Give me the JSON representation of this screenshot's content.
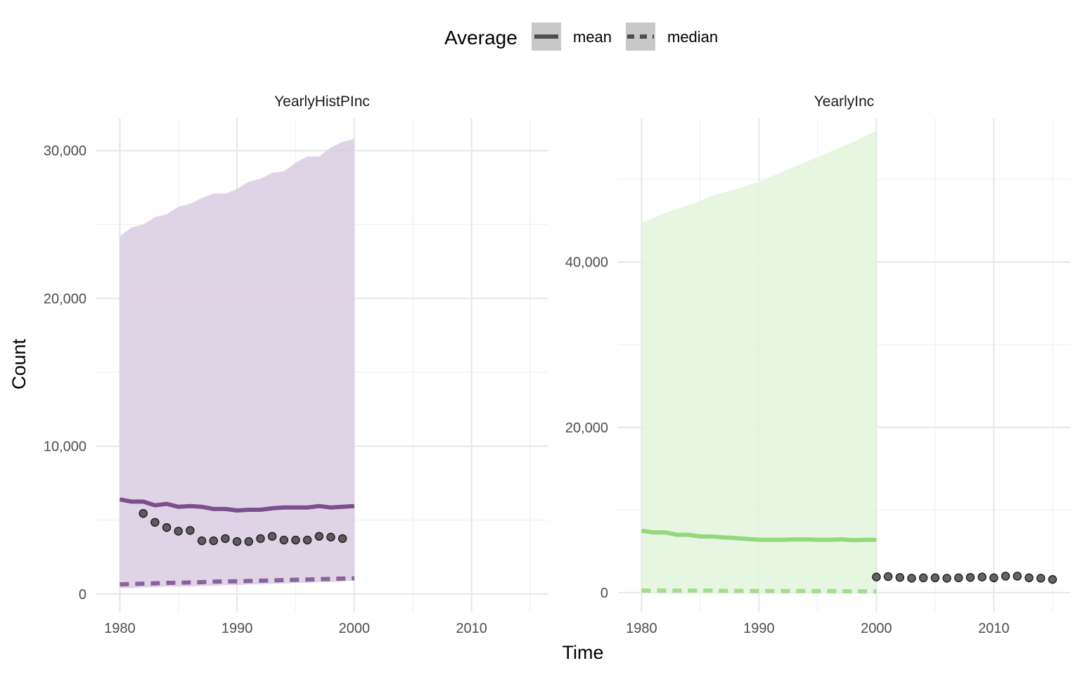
{
  "legend": {
    "title": "Average",
    "items": [
      {
        "label": "mean",
        "dash": "solid"
      },
      {
        "label": "median",
        "dash": "dashed"
      }
    ]
  },
  "axes": {
    "xlabel": "Time",
    "ylabel": "Count"
  },
  "chart_data": [
    {
      "type": "line",
      "title": "YearlyHistPInc",
      "color": "#7b4f8e",
      "band_color": "#d9cde0",
      "xlim": [
        1978,
        2016.5
      ],
      "ylim": [
        -1200,
        32200
      ],
      "x_ticks": [
        1980,
        1990,
        2000,
        2010
      ],
      "x_tick_labels": [
        "1980",
        "1990",
        "2000",
        "2010"
      ],
      "y_ticks": [
        0,
        10000,
        20000,
        30000
      ],
      "y_tick_labels": [
        "0",
        "10,000",
        "20,000",
        "30,000"
      ],
      "band": {
        "x": [
          1980,
          1981,
          1982,
          1983,
          1984,
          1985,
          1986,
          1987,
          1988,
          1989,
          1990,
          1991,
          1992,
          1993,
          1994,
          1995,
          1996,
          1997,
          1998,
          1999,
          2000
        ],
        "upper": [
          24200,
          24800,
          25000,
          25500,
          25700,
          26200,
          26400,
          26800,
          27100,
          27100,
          27400,
          27900,
          28100,
          28500,
          28600,
          29200,
          29600,
          29600,
          30200,
          30600,
          30800
        ],
        "lower": [
          400,
          400,
          450,
          450,
          500,
          500,
          500,
          550,
          550,
          600,
          600,
          650,
          650,
          700,
          700,
          750,
          750,
          800,
          800,
          850,
          900
        ]
      },
      "series": [
        {
          "name": "mean",
          "x": [
            1980,
            1981,
            1982,
            1983,
            1984,
            1985,
            1986,
            1987,
            1988,
            1989,
            1990,
            1991,
            1992,
            1993,
            1994,
            1995,
            1996,
            1997,
            1998,
            1999,
            2000
          ],
          "values": [
            6400,
            6250,
            6250,
            6000,
            6100,
            5900,
            5950,
            5900,
            5750,
            5750,
            5650,
            5700,
            5700,
            5800,
            5850,
            5850,
            5850,
            5950,
            5850,
            5900,
            5950
          ]
        },
        {
          "name": "median",
          "x": [
            1980,
            1981,
            1982,
            1983,
            1984,
            1985,
            1986,
            1987,
            1988,
            1989,
            1990,
            1991,
            1992,
            1993,
            1994,
            1995,
            1996,
            1997,
            1998,
            1999,
            2000
          ],
          "values": [
            650,
            680,
            700,
            720,
            750,
            760,
            780,
            800,
            830,
            850,
            860,
            880,
            900,
            920,
            940,
            960,
            980,
            1000,
            1020,
            1040,
            1060
          ]
        }
      ],
      "points": {
        "x": [
          1982,
          1983,
          1984,
          1985,
          1986,
          1987,
          1988,
          1989,
          1990,
          1991,
          1992,
          1993,
          1994,
          1995,
          1996,
          1997,
          1998,
          1999
        ],
        "y": [
          5450,
          4850,
          4500,
          4250,
          4300,
          3600,
          3600,
          3750,
          3550,
          3550,
          3750,
          3900,
          3650,
          3650,
          3650,
          3900,
          3850,
          3750
        ]
      }
    },
    {
      "type": "line",
      "title": "YearlyInc",
      "color": "#93d97c",
      "band_color": "#e2f5dc",
      "xlim": [
        1978,
        2016.5
      ],
      "ylim": [
        -2300,
        57400
      ],
      "x_ticks": [
        1980,
        1990,
        2000,
        2010
      ],
      "x_tick_labels": [
        "1980",
        "1990",
        "2000",
        "2010"
      ],
      "y_ticks": [
        0,
        20000,
        40000
      ],
      "y_tick_labels": [
        "0",
        "20,000",
        "40,000"
      ],
      "band": {
        "x": [
          1980,
          1981,
          1982,
          1983,
          1984,
          1985,
          1986,
          1987,
          1988,
          1989,
          1990,
          1991,
          1992,
          1993,
          1994,
          1995,
          1996,
          1997,
          1998,
          1999,
          2000
        ],
        "upper": [
          44800,
          45300,
          45900,
          46400,
          46900,
          47400,
          48000,
          48400,
          48800,
          49200,
          49700,
          50300,
          50900,
          51500,
          52100,
          52700,
          53300,
          53900,
          54500,
          55200,
          55900
        ],
        "lower": [
          0,
          0,
          0,
          0,
          0,
          0,
          0,
          0,
          0,
          0,
          0,
          0,
          0,
          0,
          0,
          0,
          0,
          0,
          0,
          0,
          0
        ]
      },
      "series": [
        {
          "name": "mean",
          "x": [
            1980,
            1981,
            1982,
            1983,
            1984,
            1985,
            1986,
            1987,
            1988,
            1989,
            1990,
            1991,
            1992,
            1993,
            1994,
            1995,
            1996,
            1997,
            1998,
            1999,
            2000
          ],
          "values": [
            7500,
            7300,
            7300,
            7000,
            7000,
            6800,
            6800,
            6700,
            6600,
            6500,
            6400,
            6400,
            6400,
            6450,
            6450,
            6400,
            6400,
            6450,
            6350,
            6400,
            6400
          ]
        },
        {
          "name": "median",
          "x": [
            1980,
            1981,
            1982,
            1983,
            1984,
            1985,
            1986,
            1987,
            1988,
            1989,
            1990,
            1991,
            1992,
            1993,
            1994,
            1995,
            1996,
            1997,
            1998,
            1999,
            2000
          ],
          "values": [
            250,
            250,
            250,
            250,
            250,
            250,
            250,
            220,
            220,
            220,
            200,
            200,
            200,
            200,
            200,
            180,
            180,
            180,
            170,
            160,
            150
          ]
        }
      ],
      "points": {
        "x": [
          2000,
          2001,
          2002,
          2003,
          2004,
          2005,
          2006,
          2007,
          2008,
          2009,
          2010,
          2011,
          2012,
          2013,
          2014,
          2015
        ],
        "y": [
          1900,
          1950,
          1850,
          1750,
          1800,
          1800,
          1750,
          1800,
          1850,
          1900,
          1800,
          2000,
          2000,
          1800,
          1750,
          1600
        ]
      }
    }
  ]
}
